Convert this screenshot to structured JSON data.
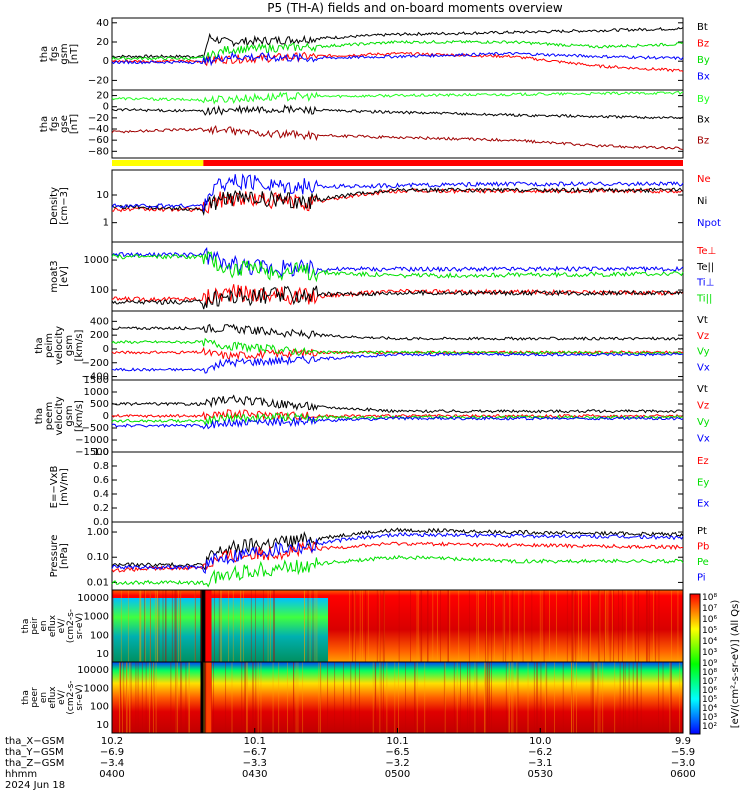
{
  "title": "P5 (TH-A) fields and on-board moments overview",
  "colors": {
    "black": "#000000",
    "red": "#ff0000",
    "green": "#00e000",
    "blue": "#0000ff",
    "darkred": "#a00000",
    "brightgreen": "#20ff20",
    "yellow": "#ffff00"
  },
  "chart_data": [
    {
      "type": "line",
      "name": "tha fgs gsm",
      "ylabel": [
        "tha",
        "fgs",
        "gsm",
        "[nT]"
      ],
      "yticks": [
        "40",
        "20",
        "0",
        "−20"
      ],
      "ylim": [
        -30,
        45
      ],
      "series": [
        {
          "name": "Bt",
          "color": "#000000",
          "x": [
            0,
            0.16,
            0.17,
            0.2,
            0.3,
            0.4,
            0.5,
            0.7,
            0.85,
            1
          ],
          "y": [
            5,
            5,
            25,
            20,
            22,
            25,
            28,
            30,
            32,
            34
          ]
        },
        {
          "name": "Bz",
          "color": "#ff0000",
          "x": [
            0,
            0.16,
            0.2,
            0.35,
            0.5,
            0.7,
            0.85,
            1
          ],
          "y": [
            0,
            0,
            2,
            5,
            8,
            5,
            -5,
            -10
          ]
        },
        {
          "name": "By",
          "color": "#00e000",
          "x": [
            0,
            0.16,
            0.2,
            0.35,
            0.5,
            0.7,
            0.85,
            1
          ],
          "y": [
            3,
            3,
            12,
            15,
            20,
            20,
            15,
            18
          ]
        },
        {
          "name": "Bx",
          "color": "#0000ff",
          "x": [
            0,
            0.16,
            0.2,
            0.35,
            0.5,
            0.7,
            0.85,
            1
          ],
          "y": [
            -1,
            -1,
            5,
            3,
            5,
            8,
            5,
            3
          ]
        }
      ]
    },
    {
      "type": "line",
      "name": "tha fgs gse",
      "ylabel": [
        "tha",
        "fgs",
        "gse",
        "[nT]"
      ],
      "yticks": [
        "20",
        "0",
        "−20",
        "−40",
        "−60",
        "−80"
      ],
      "ylim": [
        -92,
        30
      ],
      "series": [
        {
          "name": "By",
          "color": "#20ff20",
          "x": [
            0,
            0.16,
            0.3,
            0.5,
            0.7,
            1
          ],
          "y": [
            15,
            12,
            18,
            20,
            22,
            25
          ]
        },
        {
          "name": "Bx",
          "color": "#000000",
          "x": [
            0,
            0.16,
            0.3,
            0.5,
            0.7,
            1
          ],
          "y": [
            -5,
            -8,
            -5,
            -10,
            -15,
            -20
          ]
        },
        {
          "name": "Bz",
          "color": "#a00000",
          "x": [
            0,
            0.16,
            0.3,
            0.5,
            0.7,
            0.85,
            1
          ],
          "y": [
            -45,
            -40,
            -50,
            -55,
            -60,
            -70,
            -75
          ]
        }
      ]
    },
    {
      "type": "bar",
      "name": "mode bar",
      "segments": [
        {
          "color": "#ffff00",
          "from": 0,
          "to": 0.16
        },
        {
          "color": "#ff0000",
          "from": 0.16,
          "to": 1
        }
      ]
    },
    {
      "type": "line",
      "name": "Density",
      "ylabel": [
        "Density",
        "[cm−3]"
      ],
      "yticks": [
        "10",
        "1"
      ],
      "ylim": [
        0.2,
        80
      ],
      "log": true,
      "series": [
        {
          "name": "Ne",
          "color": "#ff0000",
          "x": [
            0,
            0.16,
            0.2,
            0.35,
            0.5,
            0.7,
            1
          ],
          "y": [
            3,
            3,
            8,
            5,
            14,
            14,
            14
          ]
        },
        {
          "name": "Ni",
          "color": "#000000",
          "x": [
            0,
            0.16,
            0.2,
            0.35,
            0.5,
            0.7,
            1
          ],
          "y": [
            4,
            3,
            8,
            6,
            15,
            15,
            15
          ]
        },
        {
          "name": "Npot",
          "color": "#0000ff",
          "x": [
            0,
            0.16,
            0.2,
            0.35,
            0.5,
            0.7,
            1
          ],
          "y": [
            4,
            4,
            30,
            20,
            22,
            25,
            25
          ]
        }
      ]
    },
    {
      "type": "line",
      "name": "moat3",
      "ylabel": [
        "moat3",
        "[eV]"
      ],
      "yticks": [
        "1000",
        "100"
      ],
      "ylim": [
        20,
        4000
      ],
      "log": true,
      "series": [
        {
          "name": "Te⊥",
          "color": "#ff0000",
          "x": [
            0,
            0.16,
            0.2,
            0.35,
            0.5,
            1
          ],
          "y": [
            50,
            50,
            80,
            60,
            90,
            80
          ]
        },
        {
          "name": "Te||",
          "color": "#000000",
          "x": [
            0,
            0.16,
            0.2,
            0.35,
            0.5,
            1
          ],
          "y": [
            40,
            40,
            60,
            70,
            80,
            80
          ]
        },
        {
          "name": "Ti⊥",
          "color": "#0000ff",
          "x": [
            0,
            0.16,
            0.2,
            0.35,
            0.5,
            1
          ],
          "y": [
            1500,
            1500,
            700,
            500,
            500,
            500
          ]
        },
        {
          "name": "Ti||",
          "color": "#00e000",
          "x": [
            0,
            0.16,
            0.2,
            0.35,
            0.5,
            1
          ],
          "y": [
            1300,
            1300,
            500,
            400,
            300,
            350
          ]
        }
      ]
    },
    {
      "type": "line",
      "name": "peim velocity",
      "ylabel": [
        "tha",
        "peim",
        "velocity",
        "gsm",
        "[km/s]"
      ],
      "yticks": [
        "400",
        "200",
        "0",
        "−200",
        "−400"
      ],
      "ylim": [
        -450,
        550
      ],
      "series": [
        {
          "name": "Vt",
          "color": "#000000",
          "x": [
            0,
            0.16,
            0.2,
            0.35,
            0.5,
            1
          ],
          "y": [
            300,
            300,
            300,
            200,
            150,
            150
          ]
        },
        {
          "name": "Vz",
          "color": "#ff0000",
          "x": [
            0,
            0.16,
            0.2,
            0.35,
            0.5,
            1
          ],
          "y": [
            -50,
            -50,
            -100,
            -50,
            -50,
            -50
          ]
        },
        {
          "name": "Vy",
          "color": "#00e000",
          "x": [
            0,
            0.16,
            0.2,
            0.35,
            0.5,
            1
          ],
          "y": [
            100,
            100,
            50,
            -50,
            -50,
            -60
          ]
        },
        {
          "name": "Vx",
          "color": "#0000ff",
          "x": [
            0,
            0.16,
            0.2,
            0.35,
            0.5,
            1
          ],
          "y": [
            -300,
            -300,
            -200,
            -150,
            -80,
            -80
          ]
        }
      ]
    },
    {
      "type": "line",
      "name": "peem velocity",
      "ylabel": [
        "tha",
        "peem",
        "velocity",
        "gsm",
        "[km/s]"
      ],
      "yticks": [
        "1500",
        "1000",
        "500",
        "0",
        "−500",
        "−1000",
        "−1500"
      ],
      "ylim": [
        -1500,
        1500
      ],
      "series": [
        {
          "name": "Vt",
          "color": "#000000",
          "x": [
            0,
            0.16,
            0.2,
            0.35,
            0.5,
            1
          ],
          "y": [
            500,
            500,
            700,
            400,
            200,
            200
          ]
        },
        {
          "name": "Vz",
          "color": "#ff0000",
          "x": [
            0,
            0.16,
            0.2,
            0.35,
            0.5,
            1
          ],
          "y": [
            0,
            0,
            100,
            0,
            0,
            0
          ]
        },
        {
          "name": "Vy",
          "color": "#00e000",
          "x": [
            0,
            0.16,
            0.2,
            0.35,
            0.5,
            1
          ],
          "y": [
            -200,
            -200,
            -100,
            -50,
            -50,
            -50
          ]
        },
        {
          "name": "Vx",
          "color": "#0000ff",
          "x": [
            0,
            0.16,
            0.2,
            0.35,
            0.5,
            1
          ],
          "y": [
            -400,
            -400,
            -300,
            -200,
            -100,
            -100
          ]
        }
      ]
    },
    {
      "type": "line",
      "name": "E field",
      "ylabel": [
        "E=−VxB",
        "[mV/m]"
      ],
      "yticks": [
        "1.0",
        "0.8",
        "0.6",
        "0.4",
        "0.2",
        "0.0"
      ],
      "ylim": [
        0,
        1
      ],
      "series": [
        {
          "name": "Ez",
          "color": "#ff0000",
          "x": [],
          "y": []
        },
        {
          "name": "Ey",
          "color": "#00e000",
          "x": [],
          "y": []
        },
        {
          "name": "Ex",
          "color": "#0000ff",
          "x": [],
          "y": []
        }
      ]
    },
    {
      "type": "line",
      "name": "Pressure",
      "ylabel": [
        "Pressure",
        "[nPa]"
      ],
      "yticks": [
        "1.00",
        "0.10",
        "0.01"
      ],
      "ylim": [
        0.005,
        2.5
      ],
      "log": true,
      "series": [
        {
          "name": "Pt",
          "color": "#000000",
          "x": [
            0,
            0.16,
            0.2,
            0.35,
            0.5,
            0.7,
            1
          ],
          "y": [
            0.05,
            0.05,
            0.2,
            0.5,
            1.2,
            1.0,
            0.8
          ]
        },
        {
          "name": "Pb",
          "color": "#ff0000",
          "x": [
            0,
            0.16,
            0.2,
            0.35,
            0.5,
            0.7,
            1
          ],
          "y": [
            0.03,
            0.04,
            0.1,
            0.2,
            0.35,
            0.3,
            0.25
          ]
        },
        {
          "name": "Pe",
          "color": "#00e000",
          "x": [
            0,
            0.16,
            0.2,
            0.35,
            0.5,
            0.7,
            1
          ],
          "y": [
            0.01,
            0.01,
            0.02,
            0.05,
            0.1,
            0.07,
            0.07
          ]
        },
        {
          "name": "Pi",
          "color": "#0000ff",
          "x": [
            0,
            0.16,
            0.2,
            0.35,
            0.5,
            0.7,
            1
          ],
          "y": [
            0.04,
            0.04,
            0.1,
            0.3,
            0.8,
            0.7,
            0.6
          ]
        }
      ]
    },
    {
      "type": "heatmap",
      "name": "peir en eflux",
      "ylabel": [
        "tha",
        "peir",
        "en",
        "eflux",
        "eV/",
        "(cm2-s-",
        "sr-eV)"
      ],
      "yticks": [
        "10000",
        "1000",
        "100",
        "10"
      ]
    },
    {
      "type": "heatmap",
      "name": "peer en eflux",
      "ylabel": [
        "tha",
        "peer",
        "en",
        "eflux",
        "eV/",
        "(cm2-s-",
        "sr-eV)"
      ],
      "yticks": [
        "10000",
        "1000",
        "100",
        "10"
      ]
    }
  ],
  "colorbar": {
    "label": "[eV/(cm²-s-sr-eV)] (All Qs)",
    "ticks_top": [
      "10⁸",
      "10⁷",
      "10⁶",
      "10⁵",
      "10⁴",
      "10³"
    ],
    "ticks_bottom": [
      "10⁹",
      "10⁸",
      "10⁷",
      "10⁶",
      "10⁵",
      "10⁴",
      "10³",
      "10²"
    ]
  },
  "xaxis": {
    "row_labels": [
      "tha_X−GSM",
      "tha_Y−GSM",
      "tha_Z−GSM",
      "hhmm",
      "2024 Jun 18"
    ],
    "columns": [
      {
        "x": 10.2,
        "y": -6.9,
        "z": -3.4,
        "t": "0400"
      },
      {
        "x": 10.1,
        "y": -6.7,
        "z": -3.3,
        "t": "0430"
      },
      {
        "x": 10.1,
        "y": -6.5,
        "z": -3.2,
        "t": "0500"
      },
      {
        "x": 10.0,
        "y": -6.2,
        "z": -3.1,
        "t": "0530"
      },
      {
        "x": 9.9,
        "y": -5.9,
        "z": -3.0,
        "t": "0600"
      }
    ]
  }
}
